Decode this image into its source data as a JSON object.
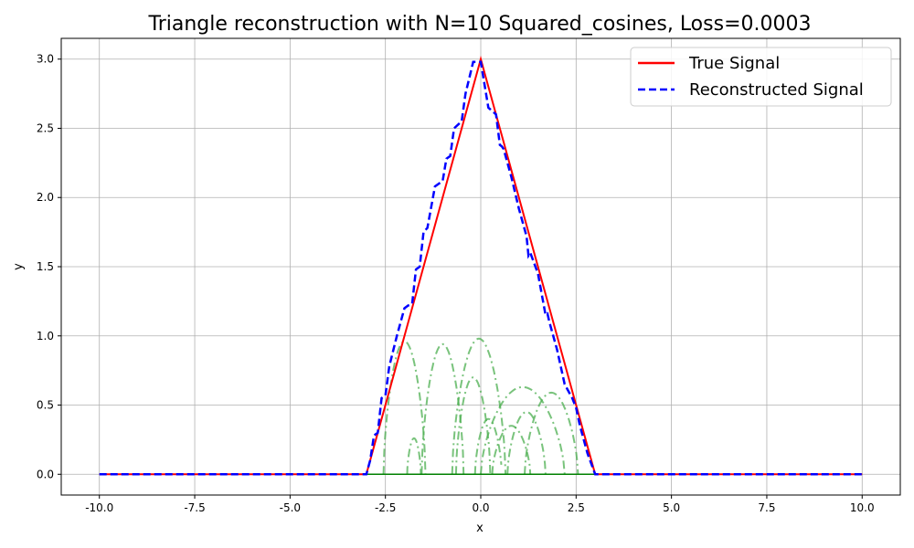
{
  "chart_data": {
    "type": "line",
    "title": "Triangle reconstruction with N=10 Squared_cosines, Loss=0.0003",
    "xlabel": "x",
    "ylabel": "y",
    "xlim": [
      -11.0,
      11.0
    ],
    "ylim": [
      -0.15,
      3.15
    ],
    "grid": true,
    "legend_position": "top-right",
    "x_ticks": [
      "-10.0",
      "-7.5",
      "-5.0",
      "-2.5",
      "0.0",
      "2.5",
      "5.0",
      "7.5",
      "10.0"
    ],
    "y_ticks": [
      "0.0",
      "0.5",
      "1.0",
      "1.5",
      "2.0",
      "2.5",
      "3.0"
    ],
    "series": [
      {
        "name": "True Signal",
        "color": "#ff0000",
        "style": "solid",
        "x": [
          -10,
          -3,
          0,
          3,
          10
        ],
        "y": [
          0,
          0,
          3,
          0,
          0
        ]
      },
      {
        "name": "Reconstructed Signal",
        "color": "#0000ff",
        "style": "dashed",
        "x": [
          -10,
          -3.0,
          -2.9,
          -2.8,
          -2.7,
          -2.6,
          -2.5,
          -2.4,
          -2.2,
          -2.0,
          -1.9,
          -1.8,
          -1.7,
          -1.6,
          -1.5,
          -1.4,
          -1.2,
          -1.0,
          -0.9,
          -0.8,
          -0.7,
          -0.5,
          -0.4,
          -0.2,
          0.0,
          0.2,
          0.4,
          0.5,
          0.55,
          0.6,
          0.8,
          1.0,
          1.2,
          1.25,
          1.3,
          1.5,
          1.7,
          1.75,
          1.8,
          2.0,
          2.2,
          2.4,
          2.5,
          2.6,
          2.8,
          3.0,
          10
        ],
        "y": [
          0,
          0,
          0.1,
          0.28,
          0.3,
          0.55,
          0.57,
          0.78,
          1.0,
          1.2,
          1.22,
          1.23,
          1.48,
          1.5,
          1.75,
          1.78,
          2.08,
          2.12,
          2.28,
          2.3,
          2.5,
          2.55,
          2.75,
          2.98,
          2.98,
          2.65,
          2.6,
          2.38,
          2.37,
          2.35,
          2.15,
          1.92,
          1.72,
          1.58,
          1.6,
          1.45,
          1.15,
          1.16,
          1.1,
          0.9,
          0.65,
          0.55,
          0.48,
          0.35,
          0.15,
          0,
          0
        ]
      }
    ],
    "components": {
      "color": "#4caf50",
      "style": "dashdot",
      "bumps": [
        {
          "center": -2.0,
          "halfwidth": 0.55,
          "peak": 0.96
        },
        {
          "center": -1.0,
          "halfwidth": 0.55,
          "peak": 0.94
        },
        {
          "center": -0.05,
          "halfwidth": 0.7,
          "peak": 0.98
        },
        {
          "center": -0.2,
          "halfwidth": 0.45,
          "peak": 0.7
        },
        {
          "center": -1.75,
          "halfwidth": 0.18,
          "peak": 0.26
        },
        {
          "center": 0.2,
          "halfwidth": 0.35,
          "peak": 0.4
        },
        {
          "center": 0.8,
          "halfwidth": 0.5,
          "peak": 0.35
        },
        {
          "center": 1.2,
          "halfwidth": 0.5,
          "peak": 0.45
        },
        {
          "center": 1.1,
          "halfwidth": 1.1,
          "peak": 0.63
        },
        {
          "center": 1.85,
          "halfwidth": 0.7,
          "peak": 0.59
        }
      ]
    }
  }
}
